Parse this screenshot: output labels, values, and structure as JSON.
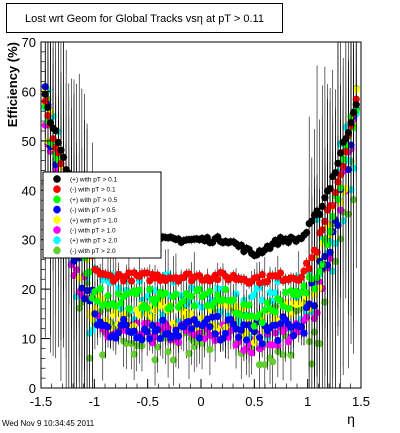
{
  "header": {
    "title": "Lost wrt Geom for Global Tracks vsη at pT > 0.11",
    "timestamp": "Wed Nov  9 10:34:45 2011"
  },
  "chart_data": {
    "type": "scatter",
    "title": "Lost wrt Geom for Global Tracks vsη at pT > 0.11",
    "xlabel": "η",
    "ylabel": "Efficiency (%)",
    "xlim": [
      -1.5,
      1.5
    ],
    "ylim": [
      0,
      70
    ],
    "x_ticks": [
      -1.5,
      -1,
      -0.5,
      0,
      0.5,
      1,
      1.5
    ],
    "x_tick_labels": [
      "-1.5",
      "-1",
      "-0.5",
      "0",
      "0.5",
      "1",
      "1.5"
    ],
    "y_ticks": [
      0,
      10,
      20,
      30,
      40,
      50,
      60,
      70
    ],
    "y_tick_labels": [
      "0",
      "10",
      "20",
      "30",
      "40",
      "50",
      "60",
      "70"
    ],
    "grid": false,
    "legend_position": "left-center",
    "series": [
      {
        "name": "(+) with pT > 0.1",
        "color": "#000000"
      },
      {
        "name": "(-) with pT > 0.1",
        "color": "#ff0000"
      },
      {
        "name": "(+) with pT > 0.5",
        "color": "#00ff00"
      },
      {
        "name": "(-) with pT > 0.5",
        "color": "#0000ff"
      },
      {
        "name": "(+) with pT > 1.0",
        "color": "#ffff00"
      },
      {
        "name": "(-) with pT > 1.0",
        "color": "#ff00ff"
      },
      {
        "name": "(+) with pT > 2.0",
        "color": "#00ffff"
      },
      {
        "name": "(-) with pT > 2.0",
        "color": "#66cc33"
      }
    ]
  }
}
